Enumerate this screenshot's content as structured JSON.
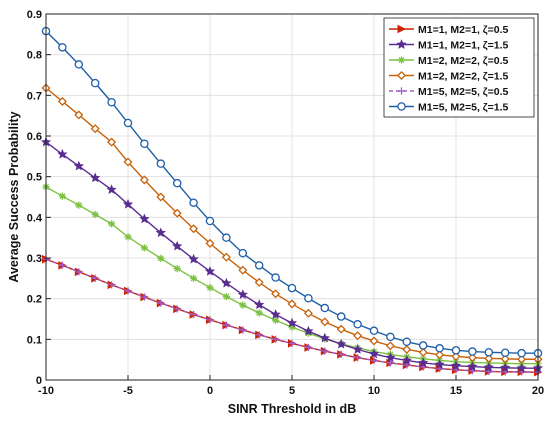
{
  "chart_data": {
    "type": "line",
    "xlabel": "SINR Threshold in dB",
    "ylabel": "Average Success Probability",
    "xlim": [
      -10,
      20
    ],
    "ylim": [
      0,
      0.9
    ],
    "xticks": [
      -10,
      -5,
      0,
      5,
      10,
      15,
      20
    ],
    "yticks": [
      0,
      0.1,
      0.2,
      0.3,
      0.4,
      0.5,
      0.6,
      0.7,
      0.8,
      0.9
    ],
    "xtick_labels": [
      "-10",
      "-5",
      "0",
      "5",
      "10",
      "15",
      "20"
    ],
    "ytick_labels": [
      "0",
      "0.1",
      "0.2",
      "0.3",
      "0.4",
      "0.5",
      "0.6",
      "0.7",
      "0.8",
      "0.9"
    ],
    "grid": true,
    "legend_position": "top-right",
    "x": [
      -10,
      -9,
      -8,
      -7,
      -6,
      -5,
      -4,
      -3,
      -2,
      -1,
      0,
      1,
      2,
      3,
      4,
      5,
      6,
      7,
      8,
      9,
      10,
      11,
      12,
      13,
      14,
      15,
      16,
      17,
      18,
      19,
      20
    ],
    "series": [
      {
        "name": "M1=1, M2=1, ζ=0.5",
        "color": "#cc2200",
        "marker": "triangle-right",
        "values": [
          0.297,
          0.282,
          0.266,
          0.25,
          0.234,
          0.219,
          0.204,
          0.189,
          0.175,
          0.161,
          0.148,
          0.135,
          0.123,
          0.111,
          0.1,
          0.09,
          0.08,
          0.071,
          0.063,
          0.055,
          0.048,
          0.042,
          0.037,
          0.032,
          0.028,
          0.025,
          0.023,
          0.021,
          0.02,
          0.02,
          0.019
        ]
      },
      {
        "name": "M1=1, M2=1, ζ=1.5",
        "color": "#5a2d91",
        "marker": "star",
        "values": [
          0.585,
          0.555,
          0.526,
          0.497,
          0.468,
          0.432,
          0.396,
          0.362,
          0.329,
          0.297,
          0.267,
          0.238,
          0.21,
          0.185,
          0.161,
          0.14,
          0.12,
          0.103,
          0.088,
          0.075,
          0.064,
          0.055,
          0.048,
          0.042,
          0.038,
          0.035,
          0.033,
          0.031,
          0.03,
          0.029,
          0.029
        ]
      },
      {
        "name": "M1=2, M2=2, ζ=0.5",
        "color": "#7cc242",
        "marker": "asterisk",
        "values": [
          0.475,
          0.452,
          0.43,
          0.407,
          0.384,
          0.352,
          0.325,
          0.299,
          0.274,
          0.25,
          0.227,
          0.205,
          0.184,
          0.165,
          0.147,
          0.13,
          0.115,
          0.101,
          0.089,
          0.079,
          0.07,
          0.063,
          0.057,
          0.052,
          0.048,
          0.045,
          0.043,
          0.042,
          0.041,
          0.04,
          0.04
        ]
      },
      {
        "name": "M1=2, M2=2, ζ=1.5",
        "color": "#c8620b",
        "marker": "diamond",
        "values": [
          0.718,
          0.685,
          0.652,
          0.618,
          0.585,
          0.536,
          0.492,
          0.45,
          0.41,
          0.372,
          0.336,
          0.302,
          0.27,
          0.24,
          0.212,
          0.187,
          0.164,
          0.143,
          0.125,
          0.109,
          0.096,
          0.084,
          0.075,
          0.068,
          0.062,
          0.058,
          0.055,
          0.053,
          0.052,
          0.051,
          0.051
        ]
      },
      {
        "name": "M1=5, M2=5, ζ=0.5",
        "color": "#a05cc8",
        "marker": "plus",
        "values": [
          0.297,
          0.282,
          0.266,
          0.25,
          0.234,
          0.219,
          0.204,
          0.189,
          0.175,
          0.161,
          0.148,
          0.135,
          0.123,
          0.111,
          0.1,
          0.09,
          0.08,
          0.071,
          0.063,
          0.055,
          0.048,
          0.042,
          0.037,
          0.032,
          0.028,
          0.025,
          0.023,
          0.021,
          0.02,
          0.02,
          0.019
        ]
      },
      {
        "name": "M1=5, M2=5, ζ=1.5",
        "color": "#1f5fa8",
        "marker": "circle",
        "values": [
          0.858,
          0.818,
          0.776,
          0.73,
          0.683,
          0.632,
          0.581,
          0.532,
          0.484,
          0.436,
          0.391,
          0.35,
          0.312,
          0.282,
          0.252,
          0.226,
          0.201,
          0.177,
          0.156,
          0.137,
          0.121,
          0.106,
          0.094,
          0.085,
          0.078,
          0.073,
          0.07,
          0.068,
          0.067,
          0.066,
          0.066
        ]
      }
    ]
  }
}
